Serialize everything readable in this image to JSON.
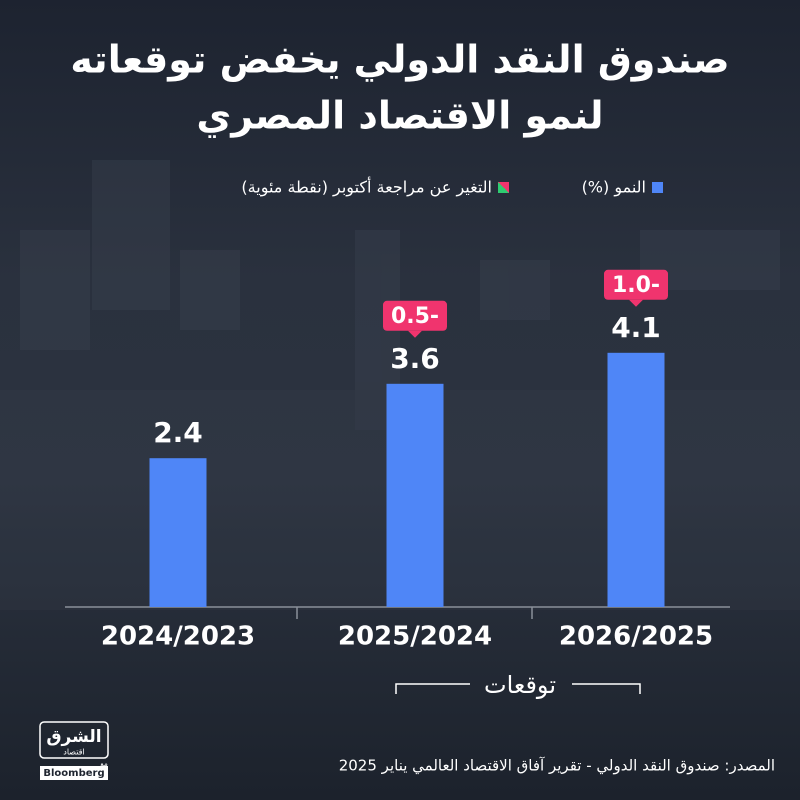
{
  "chart_data": {
    "type": "bar",
    "title_lines": [
      "صندوق النقد الدولي يخفض توقعاته",
      "لنمو الاقتصاد المصري"
    ],
    "categories": [
      "2024/2023",
      "2025/2024",
      "2026/2025"
    ],
    "series": [
      {
        "name": "النمو (%)",
        "color": "#4f86f7",
        "values": [
          2.4,
          3.6,
          4.1
        ]
      },
      {
        "name": "التغير عن مراجعة أكتوبر (نقطة مئوية)",
        "color": "#f0346e",
        "values": [
          null,
          -0.5,
          -1.0
        ],
        "value_labels": [
          null,
          "0.5-",
          "1.0-"
        ]
      }
    ],
    "forecast_label": "توقعات",
    "source": "المصدر: صندوق النقد الدولي - تقرير آفاق الاقتصاد العالمي يناير 2025",
    "logo": {
      "name": "الشرق",
      "sub": "اقتصاد",
      "with": "مع",
      "partner": "Bloomberg"
    }
  }
}
